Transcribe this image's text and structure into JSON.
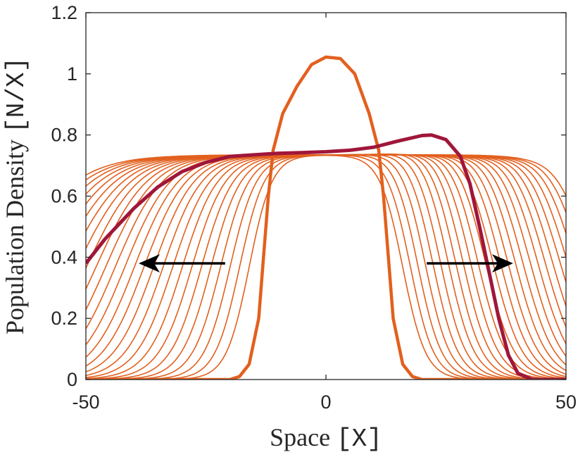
{
  "chart_data": {
    "type": "line",
    "title": "",
    "xlabel": {
      "text": "Space ",
      "unit": "[X]"
    },
    "ylabel": {
      "text": "Population Density ",
      "unit": "[N/X]"
    },
    "xlim": [
      -50,
      50
    ],
    "ylim": [
      0,
      1.2
    ],
    "xticks": [
      -50,
      0,
      50
    ],
    "yticks": [
      0,
      0.2,
      0.4,
      0.6,
      0.8,
      1,
      1.2
    ],
    "xtick_labels": [
      "-50",
      "0",
      "50"
    ],
    "ytick_labels": [
      "0",
      "0.2",
      "0.4",
      "0.6",
      "0.8",
      "1",
      "1.2"
    ],
    "grid": false,
    "legend": null,
    "colors": {
      "family": "#E2601E",
      "highlight": "#A0163A",
      "arrow": "#000000",
      "axis": "#262626"
    },
    "series": [
      {
        "role": "initial-profile",
        "points": [
          [
            -50,
            0
          ],
          [
            -20,
            0
          ],
          [
            -18,
            0.01
          ],
          [
            -16,
            0.05
          ],
          [
            -14,
            0.2
          ],
          [
            -13,
            0.4
          ],
          [
            -12,
            0.6
          ],
          [
            -11,
            0.75
          ],
          [
            -9,
            0.87
          ],
          [
            -6,
            0.96
          ],
          [
            -3,
            1.03
          ],
          [
            0,
            1.055
          ],
          [
            3,
            1.05
          ],
          [
            6,
            1.0
          ],
          [
            9,
            0.87
          ],
          [
            11,
            0.75
          ],
          [
            12,
            0.6
          ],
          [
            13,
            0.4
          ],
          [
            14,
            0.2
          ],
          [
            16,
            0.05
          ],
          [
            18,
            0.01
          ],
          [
            20,
            0
          ],
          [
            50,
            0
          ]
        ]
      },
      {
        "role": "highlighted-profile",
        "points": [
          [
            -50,
            0.38
          ],
          [
            -46,
            0.46
          ],
          [
            -40,
            0.56
          ],
          [
            -35,
            0.63
          ],
          [
            -30,
            0.68
          ],
          [
            -25,
            0.71
          ],
          [
            -20,
            0.73
          ],
          [
            -15,
            0.735
          ],
          [
            -10,
            0.74
          ],
          [
            -5,
            0.742
          ],
          [
            0,
            0.745
          ],
          [
            5,
            0.75
          ],
          [
            10,
            0.76
          ],
          [
            15,
            0.78
          ],
          [
            20,
            0.798
          ],
          [
            22,
            0.8
          ],
          [
            25,
            0.785
          ],
          [
            28,
            0.73
          ],
          [
            30,
            0.64
          ],
          [
            32,
            0.5
          ],
          [
            34,
            0.35
          ],
          [
            36,
            0.2
          ],
          [
            38,
            0.08
          ],
          [
            40,
            0.02
          ],
          [
            43,
            0
          ],
          [
            50,
            0
          ]
        ]
      }
    ],
    "family": {
      "count": 26,
      "plateau": 0.735,
      "left_plateau": 0.728,
      "right_plateau": 0.793,
      "right_front_first": 16,
      "right_front_step": 1.55,
      "left_front_first": -16,
      "left_front_step": -2.0
    },
    "arrows": [
      {
        "direction": "left",
        "from": [
          -21,
          0.38
        ],
        "to": [
          -39,
          0.38
        ]
      },
      {
        "direction": "right",
        "from": [
          21,
          0.38
        ],
        "to": [
          39,
          0.38
        ]
      }
    ]
  }
}
